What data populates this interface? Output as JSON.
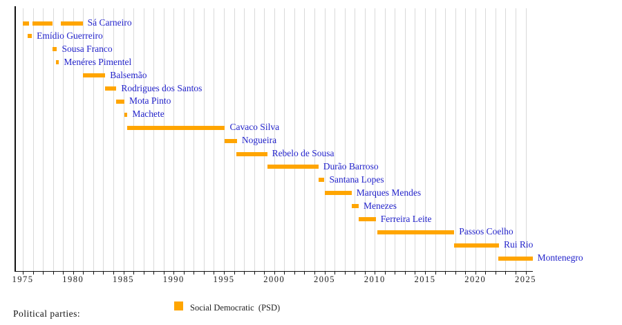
{
  "chart_data": {
    "type": "bar",
    "subtype": "timeline-gantt",
    "title": "",
    "description": "Terms of Social Democratic (PSD) party leaders shown as horizontal orange bars on a year axis",
    "bar_color": "#FFA500",
    "row_label_color": "#2323CB",
    "gridline_color": "#d9d9d9",
    "axis_color": "#111111",
    "x_axis": {
      "range": [
        1974.25,
        2025.7
      ],
      "tick_step_years": 1,
      "labeled_ticks": [
        "1975",
        "1980",
        "1985",
        "1990",
        "1995",
        "2000",
        "2005",
        "2010",
        "2015",
        "2020",
        "2025"
      ],
      "labeled_tick_years": [
        1975,
        1980,
        1985,
        1990,
        1995,
        2000,
        2005,
        2010,
        2015,
        2020,
        2025
      ],
      "grid": true
    },
    "rows": [
      {
        "name": "Sá Carneiro",
        "segments": [
          [
            1975.0,
            1975.6
          ],
          [
            1975.95,
            1977.95
          ],
          [
            1978.75,
            1980.95
          ]
        ]
      },
      {
        "name": "Emídio Guerreiro",
        "segments": [
          [
            1975.5,
            1975.9
          ]
        ]
      },
      {
        "name": "Sousa Franco",
        "segments": [
          [
            1977.95,
            1978.4
          ]
        ]
      },
      {
        "name": "Menéres Pimentel",
        "segments": [
          [
            1978.3,
            1978.6
          ]
        ]
      },
      {
        "name": "Balsemão",
        "segments": [
          [
            1980.95,
            1983.2
          ]
        ]
      },
      {
        "name": "Rodrigues dos Santos",
        "segments": [
          [
            1983.2,
            1984.3
          ]
        ]
      },
      {
        "name": "Mota Pinto",
        "segments": [
          [
            1984.3,
            1985.1
          ]
        ]
      },
      {
        "name": "Machete",
        "segments": [
          [
            1985.1,
            1985.4
          ]
        ]
      },
      {
        "name": "Cavaco Silva",
        "segments": [
          [
            1985.4,
            1995.1
          ]
        ]
      },
      {
        "name": "Nogueira",
        "segments": [
          [
            1995.1,
            1996.3
          ]
        ]
      },
      {
        "name": "Rebelo de Sousa",
        "segments": [
          [
            1996.25,
            1999.3
          ]
        ]
      },
      {
        "name": "Durão Barroso",
        "segments": [
          [
            1999.3,
            2004.4
          ]
        ]
      },
      {
        "name": "Santana Lopes",
        "segments": [
          [
            2004.4,
            2005.0
          ]
        ]
      },
      {
        "name": "Marques Mendes",
        "segments": [
          [
            2005.05,
            2007.7
          ]
        ]
      },
      {
        "name": "Menezes",
        "segments": [
          [
            2007.7,
            2008.4
          ]
        ]
      },
      {
        "name": "Ferreira Leite",
        "segments": [
          [
            2008.4,
            2010.1
          ]
        ]
      },
      {
        "name": "Passos Coelho",
        "segments": [
          [
            2010.25,
            2017.9
          ]
        ]
      },
      {
        "name": "Rui Rio",
        "segments": [
          [
            2017.9,
            2022.35
          ]
        ]
      },
      {
        "name": "Montenegro",
        "segments": [
          [
            2022.3,
            2025.7
          ]
        ]
      }
    ]
  },
  "legend": {
    "heading": "Political parties:",
    "items": [
      {
        "label": "Social Democratic  (PSD)",
        "color": "#FFA500"
      }
    ]
  }
}
